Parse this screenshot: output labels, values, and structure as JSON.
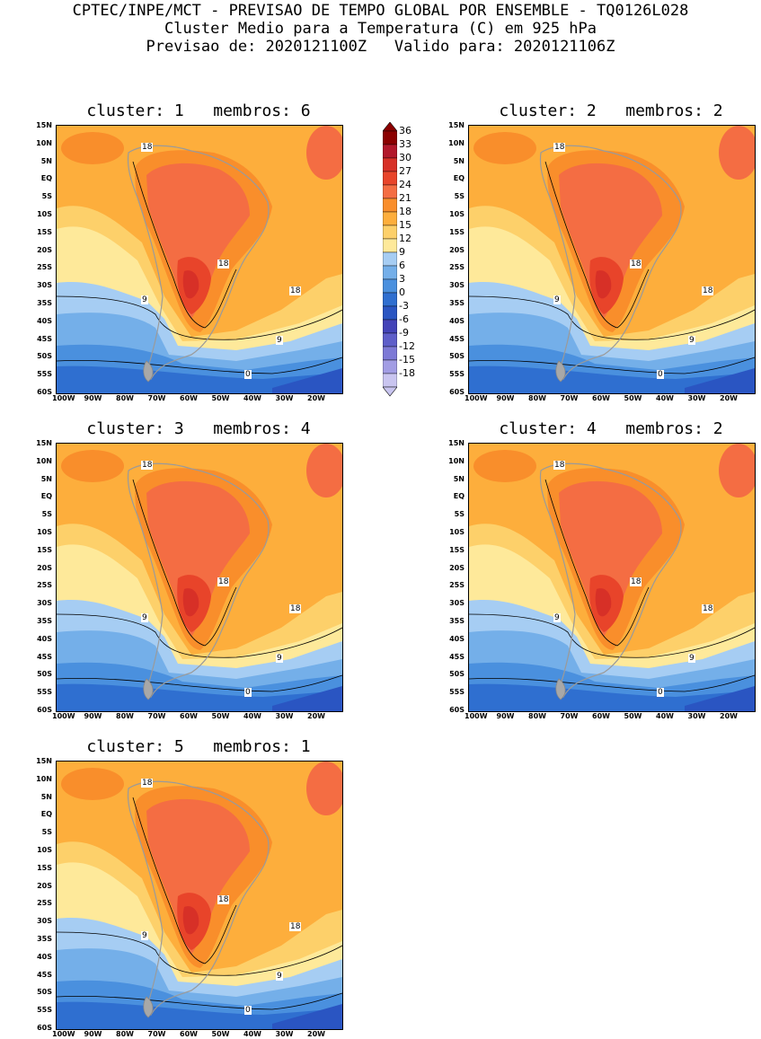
{
  "header": {
    "line1": "CPTEC/INPE/MCT - PREVISAO DE TEMPO GLOBAL POR ENSEMBLE - TQ0126L028",
    "line2": "Cluster Medio para a Temperatura (C) em 925 hPa",
    "line3": "Previsao de: 2020121100Z   Valido para: 2020121106Z"
  },
  "axes": {
    "lat_ticks": [
      "15N",
      "10N",
      "5N",
      "EQ",
      "5S",
      "10S",
      "15S",
      "20S",
      "25S",
      "30S",
      "35S",
      "40S",
      "45S",
      "50S",
      "55S",
      "60S"
    ],
    "lon_ticks": [
      "100W",
      "90W",
      "80W",
      "70W",
      "60W",
      "50W",
      "40W",
      "30W",
      "20W"
    ]
  },
  "colorbar": {
    "levels": [
      "36",
      "33",
      "30",
      "27",
      "24",
      "21",
      "18",
      "15",
      "12",
      "9",
      "6",
      "3",
      "0",
      "-3",
      "-6",
      "-9",
      "-12",
      "-15",
      "-18"
    ],
    "colors": [
      "#8b0000",
      "#b2182b",
      "#d73027",
      "#e8442a",
      "#f46d43",
      "#f98e2b",
      "#fdae3c",
      "#fdd06a",
      "#fee99a",
      "#a6cdf3",
      "#74afe9",
      "#4a90de",
      "#2f6fd0",
      "#2a55c2",
      "#4343b8",
      "#5e5ec9",
      "#7d79d6",
      "#a29de4",
      "#c9c5f0"
    ]
  },
  "panels": [
    {
      "title": "cluster: 1   membros: 6",
      "labels": {
        "l18a": "18",
        "l18b": "18",
        "l18c": "18",
        "l9a": "9",
        "l9b": "9",
        "l0": "0"
      }
    },
    {
      "title": "cluster: 2   membros: 2",
      "labels": {
        "l18a": "18",
        "l18b": "18",
        "l18c": "18",
        "l9a": "9",
        "l9b": "9",
        "l0": "0"
      }
    },
    {
      "title": "cluster: 3   membros: 4",
      "labels": {
        "l18a": "18",
        "l18b": "18",
        "l18c": "18",
        "l9a": "9",
        "l9b": "9",
        "l0": "0"
      }
    },
    {
      "title": "cluster: 4   membros: 2",
      "labels": {
        "l18a": "18",
        "l18b": "18",
        "l18c": "18",
        "l9a": "9",
        "l9b": "9",
        "l0": "0"
      }
    },
    {
      "title": "cluster: 5   membros: 1",
      "labels": {
        "l18a": "18",
        "l18b": "18",
        "l18c": "18",
        "l9a": "9",
        "l9b": "9",
        "l0": "0"
      }
    }
  ]
}
